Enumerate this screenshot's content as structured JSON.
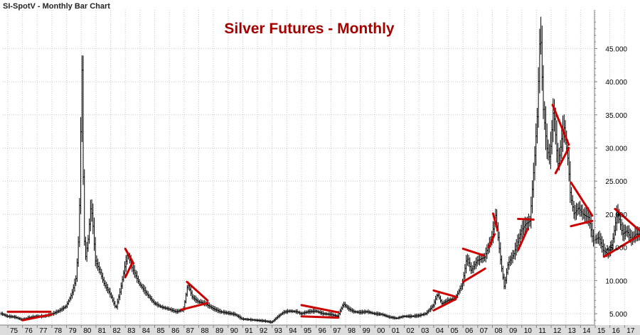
{
  "window": {
    "title": "SI-SpotV - Monthly Bar Chart"
  },
  "colors": {
    "title": "#a50000",
    "bars": "#000000",
    "trendlines": "#cc0000",
    "grid": "#c8c8c8",
    "axis_line": "#808080",
    "bottom_band": "#dcdcdc"
  },
  "chart_data": {
    "type": "bar",
    "subtype": "ohlc-monthly",
    "title": "Silver Futures - Monthly",
    "xlabel": "",
    "ylabel": "",
    "grid": true,
    "y_axis_side": "right",
    "ylim": [
      3.5,
      50
    ],
    "xlim": [
      1974.55,
      2018.05
    ],
    "y_ticks": [
      5,
      10,
      15,
      20,
      25,
      30,
      35,
      40,
      45
    ],
    "y_tick_labels": [
      "5.000",
      "10.000",
      "15.000",
      "20.000",
      "25.000",
      "30.000",
      "35.000",
      "40.000",
      "45.000"
    ],
    "x_ticks": [
      1975,
      1976,
      1977,
      1978,
      1979,
      1980,
      1981,
      1982,
      1983,
      1984,
      1985,
      1986,
      1987,
      1988,
      1989,
      1990,
      1991,
      1992,
      1993,
      1994,
      1995,
      1996,
      1997,
      1998,
      1999,
      2000,
      2001,
      2002,
      2003,
      2004,
      2005,
      2006,
      2007,
      2008,
      2009,
      2010,
      2011,
      2012,
      2013,
      2014,
      2015,
      2016,
      2017
    ],
    "x_tick_labels": [
      "75",
      "76",
      "77",
      "78",
      "79",
      "80",
      "81",
      "82",
      "83",
      "84",
      "85",
      "86",
      "87",
      "88",
      "89",
      "90",
      "91",
      "92",
      "93",
      "94",
      "95",
      "96",
      "97",
      "98",
      "99",
      "00",
      "01",
      "02",
      "03",
      "04",
      "05",
      "06",
      "07",
      "08",
      "09",
      "10",
      "11",
      "12",
      "13",
      "14",
      "15",
      "16",
      "17"
    ],
    "price_path": [
      [
        1974.6,
        5.0
      ],
      [
        1975.0,
        4.6
      ],
      [
        1975.5,
        4.5
      ],
      [
        1976.0,
        4.1
      ],
      [
        1976.5,
        4.4
      ],
      [
        1977.0,
        4.6
      ],
      [
        1977.5,
        4.6
      ],
      [
        1978.0,
        4.9
      ],
      [
        1978.5,
        5.4
      ],
      [
        1979.0,
        6.1
      ],
      [
        1979.4,
        8.0
      ],
      [
        1979.7,
        10.5
      ],
      [
        1979.9,
        18.0
      ],
      [
        1980.05,
        38.0
      ],
      [
        1980.1,
        42.5
      ],
      [
        1980.2,
        20.0
      ],
      [
        1980.3,
        13.0
      ],
      [
        1980.5,
        16.0
      ],
      [
        1980.7,
        21.5
      ],
      [
        1980.85,
        18.0
      ],
      [
        1981.0,
        13.0
      ],
      [
        1981.3,
        11.5
      ],
      [
        1981.6,
        9.5
      ],
      [
        1982.0,
        8.0
      ],
      [
        1982.4,
        5.8
      ],
      [
        1982.7,
        8.5
      ],
      [
        1983.0,
        12.0
      ],
      [
        1983.2,
        14.0
      ],
      [
        1983.5,
        12.0
      ],
      [
        1983.8,
        10.5
      ],
      [
        1984.0,
        9.5
      ],
      [
        1984.5,
        8.0
      ],
      [
        1985.0,
        6.6
      ],
      [
        1985.5,
        6.0
      ],
      [
        1986.0,
        5.7
      ],
      [
        1986.5,
        5.3
      ],
      [
        1987.0,
        5.6
      ],
      [
        1987.3,
        9.5
      ],
      [
        1987.6,
        7.5
      ],
      [
        1988.0,
        6.8
      ],
      [
        1988.5,
        6.5
      ],
      [
        1989.0,
        5.8
      ],
      [
        1989.5,
        5.3
      ],
      [
        1990.0,
        5.1
      ],
      [
        1990.5,
        4.9
      ],
      [
        1991.0,
        4.2
      ],
      [
        1991.5,
        4.1
      ],
      [
        1992.0,
        4.0
      ],
      [
        1992.5,
        3.9
      ],
      [
        1993.0,
        3.7
      ],
      [
        1993.4,
        4.5
      ],
      [
        1993.8,
        5.2
      ],
      [
        1994.2,
        5.4
      ],
      [
        1994.7,
        5.3
      ],
      [
        1995.0,
        5.0
      ],
      [
        1995.5,
        5.3
      ],
      [
        1996.0,
        5.4
      ],
      [
        1996.5,
        5.0
      ],
      [
        1997.0,
        4.9
      ],
      [
        1997.5,
        4.6
      ],
      [
        1997.9,
        6.5
      ],
      [
        1998.2,
        5.8
      ],
      [
        1998.6,
        5.3
      ],
      [
        1999.0,
        5.2
      ],
      [
        1999.5,
        5.3
      ],
      [
        2000.0,
        5.0
      ],
      [
        2000.5,
        4.9
      ],
      [
        2001.0,
        4.5
      ],
      [
        2001.5,
        4.3
      ],
      [
        2002.0,
        4.6
      ],
      [
        2002.5,
        4.6
      ],
      [
        2003.0,
        4.7
      ],
      [
        2003.5,
        5.0
      ],
      [
        2004.0,
        6.2
      ],
      [
        2004.3,
        8.0
      ],
      [
        2004.6,
        6.5
      ],
      [
        2005.0,
        7.0
      ],
      [
        2005.5,
        7.3
      ],
      [
        2006.0,
        9.5
      ],
      [
        2006.3,
        13.5
      ],
      [
        2006.6,
        11.5
      ],
      [
        2007.0,
        13.0
      ],
      [
        2007.5,
        13.5
      ],
      [
        2008.0,
        16.5
      ],
      [
        2008.25,
        20.0
      ],
      [
        2008.6,
        13.0
      ],
      [
        2008.85,
        9.0
      ],
      [
        2009.1,
        12.5
      ],
      [
        2009.5,
        14.0
      ],
      [
        2010.0,
        17.5
      ],
      [
        2010.3,
        18.5
      ],
      [
        2010.6,
        19.0
      ],
      [
        2010.9,
        28.0
      ],
      [
        2011.1,
        35.0
      ],
      [
        2011.3,
        48.5
      ],
      [
        2011.5,
        36.0
      ],
      [
        2011.75,
        30.0
      ],
      [
        2011.95,
        28.5
      ],
      [
        2012.2,
        36.0
      ],
      [
        2012.5,
        27.5
      ],
      [
        2012.9,
        33.5
      ],
      [
        2013.2,
        28.0
      ],
      [
        2013.35,
        23.0
      ],
      [
        2013.6,
        20.0
      ],
      [
        2013.9,
        21.0
      ],
      [
        2014.2,
        20.0
      ],
      [
        2014.6,
        19.5
      ],
      [
        2014.9,
        16.0
      ],
      [
        2015.3,
        16.5
      ],
      [
        2015.6,
        14.5
      ],
      [
        2015.9,
        14.0
      ],
      [
        2016.2,
        15.5
      ],
      [
        2016.55,
        20.5
      ],
      [
        2016.9,
        17.0
      ],
      [
        2017.2,
        17.5
      ],
      [
        2017.5,
        16.2
      ],
      [
        2017.8,
        17.0
      ]
    ],
    "trendlines": [
      [
        [
          1975.0,
          5.3
        ],
        [
          1977.9,
          5.3
        ]
      ],
      [
        [
          1976.0,
          4.0
        ],
        [
          1978.0,
          4.9
        ]
      ],
      [
        [
          1983.0,
          14.8
        ],
        [
          1983.55,
          12.6
        ]
      ],
      [
        [
          1983.0,
          10.5
        ],
        [
          1983.5,
          12.8
        ]
      ],
      [
        [
          1987.2,
          9.8
        ],
        [
          1988.6,
          7.0
        ]
      ],
      [
        [
          1986.8,
          5.6
        ],
        [
          1988.6,
          6.6
        ]
      ],
      [
        [
          1995.0,
          6.3
        ],
        [
          1997.5,
          5.2
        ]
      ],
      [
        [
          1995.0,
          4.6
        ],
        [
          1997.5,
          4.4
        ]
      ],
      [
        [
          2004.0,
          8.5
        ],
        [
          2005.6,
          7.5
        ]
      ],
      [
        [
          2004.0,
          5.5
        ],
        [
          2005.5,
          7.2
        ]
      ],
      [
        [
          2006.0,
          14.8
        ],
        [
          2007.4,
          13.8
        ]
      ],
      [
        [
          2006.0,
          9.8
        ],
        [
          2007.5,
          11.8
        ]
      ],
      [
        [
          2008.05,
          20.1
        ],
        [
          2008.35,
          17.6
        ]
      ],
      [
        [
          2007.75,
          15.0
        ],
        [
          2008.15,
          17.0
        ]
      ],
      [
        [
          2009.75,
          19.3
        ],
        [
          2010.8,
          19.2
        ]
      ],
      [
        [
          2009.75,
          14.6
        ],
        [
          2010.4,
          17.8
        ]
      ],
      [
        [
          2012.1,
          36.5
        ],
        [
          2013.2,
          30.5
        ]
      ],
      [
        [
          2012.3,
          26.2
        ],
        [
          2013.2,
          30.0
        ]
      ],
      [
        [
          2013.35,
          24.8
        ],
        [
          2014.8,
          19.8
        ]
      ],
      [
        [
          2013.35,
          18.2
        ],
        [
          2014.8,
          19.0
        ]
      ],
      [
        [
          2016.35,
          20.8
        ],
        [
          2018.0,
          17.6
        ]
      ],
      [
        [
          2015.6,
          13.6
        ],
        [
          2018.0,
          16.8
        ]
      ]
    ]
  }
}
